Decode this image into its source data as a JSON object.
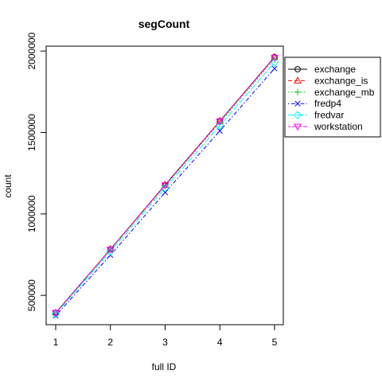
{
  "chart_data": {
    "type": "line",
    "title": "segCount",
    "xlabel": "full ID",
    "ylabel": "count",
    "x": [
      1,
      2,
      3,
      4,
      5
    ],
    "xlim": [
      1,
      5
    ],
    "ylim": [
      320000,
      2030000
    ],
    "xticks": [
      "1",
      "2",
      "3",
      "4",
      "5"
    ],
    "yticks": [
      500000,
      1000000,
      1500000,
      2000000
    ],
    "ytick_labels": [
      "500000",
      "1000000",
      "1500000",
      "2000000"
    ],
    "grid": false,
    "legend_position": "outside-top-right",
    "series": [
      {
        "name": "exchange",
        "values": [
          393000,
          783000,
          1178000,
          1570000,
          1963000
        ],
        "color": "#000000",
        "marker": "circle",
        "dash": "solid"
      },
      {
        "name": "exchange_is",
        "values": [
          393000,
          783000,
          1178000,
          1570000,
          1963000
        ],
        "color": "#ff0000",
        "marker": "triangle-up",
        "dash": "dashed"
      },
      {
        "name": "exchange_mb",
        "values": [
          390000,
          780000,
          1172000,
          1560000,
          1950000
        ],
        "color": "#00cd00",
        "marker": "plus",
        "dash": "dotted"
      },
      {
        "name": "fredp4",
        "values": [
          376000,
          747000,
          1132000,
          1510000,
          1893000
        ],
        "color": "#0000ff",
        "marker": "x",
        "dash": "dotdash"
      },
      {
        "name": "fredvar",
        "values": [
          386000,
          770000,
          1160000,
          1542000,
          1930000
        ],
        "color": "#00ffff",
        "marker": "diamond",
        "dash": "longdash"
      },
      {
        "name": "workstation",
        "values": [
          393000,
          782000,
          1176000,
          1568000,
          1960000
        ],
        "color": "#ff00ff",
        "marker": "triangle-down",
        "dash": "twodash"
      }
    ]
  }
}
